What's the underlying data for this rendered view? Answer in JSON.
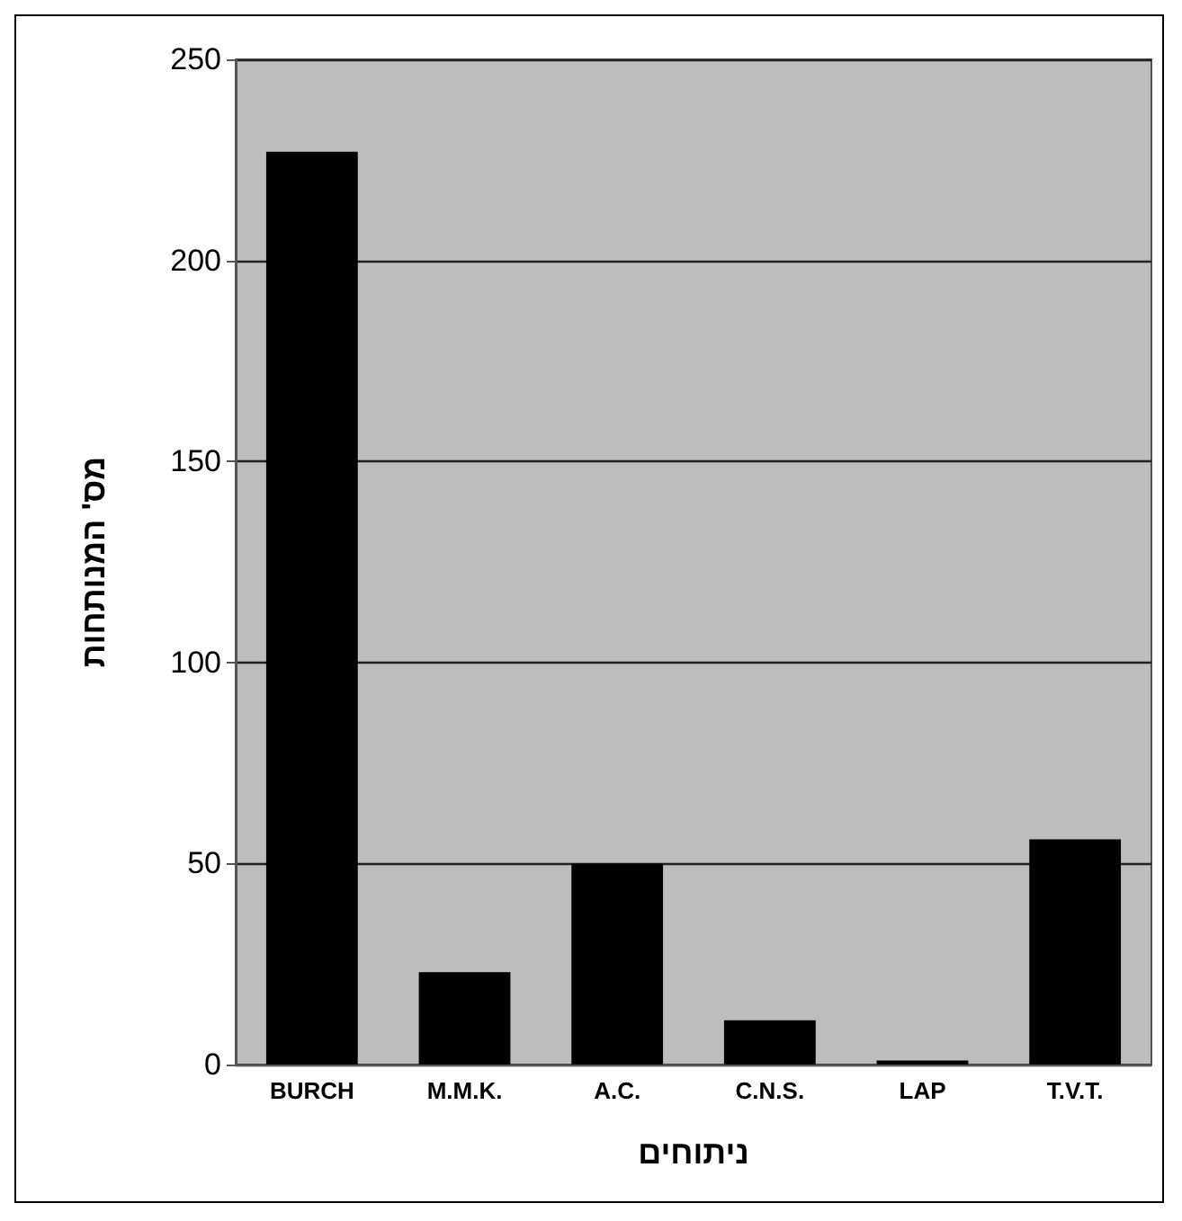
{
  "chart_data": {
    "type": "bar",
    "xlabel": "ניתוחים",
    "ylabel": "מס' המנותחות",
    "categories": [
      "BURCH",
      "M.M.K.",
      "A.C.",
      "C.N.S.",
      "LAP",
      "T.V.T."
    ],
    "values": [
      227,
      23,
      50,
      11,
      1,
      56
    ],
    "color": "#000000",
    "ylim": [
      0,
      250
    ],
    "yticks": [
      0,
      50,
      100,
      150,
      200,
      250
    ],
    "grid": "y"
  }
}
